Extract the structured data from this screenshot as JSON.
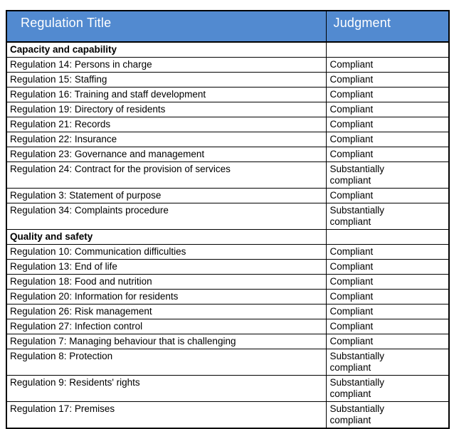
{
  "table": {
    "headers": [
      "Regulation Title",
      "Judgment"
    ],
    "sections": [
      {
        "title": "Capacity and capability",
        "rows": [
          {
            "title": "Regulation 14: Persons in charge",
            "judgment": "Compliant"
          },
          {
            "title": "Regulation 15: Staffing",
            "judgment": "Compliant"
          },
          {
            "title": "Regulation 16: Training and staff development",
            "judgment": "Compliant"
          },
          {
            "title": "Regulation 19: Directory of residents",
            "judgment": "Compliant"
          },
          {
            "title": "Regulation 21: Records",
            "judgment": "Compliant"
          },
          {
            "title": "Regulation 22: Insurance",
            "judgment": "Compliant"
          },
          {
            "title": "Regulation 23: Governance and management",
            "judgment": "Compliant"
          },
          {
            "title": "Regulation 24: Contract for the provision of services",
            "judgment": "Substantially compliant"
          },
          {
            "title": "Regulation 3: Statement of purpose",
            "judgment": "Compliant"
          },
          {
            "title": "Regulation 34: Complaints procedure",
            "judgment": "Substantially compliant"
          }
        ]
      },
      {
        "title": "Quality and safety",
        "rows": [
          {
            "title": "Regulation 10: Communication difficulties",
            "judgment": "Compliant"
          },
          {
            "title": "Regulation 13: End of life",
            "judgment": "Compliant"
          },
          {
            "title": "Regulation 18: Food and nutrition",
            "judgment": "Compliant"
          },
          {
            "title": "Regulation 20: Information for residents",
            "judgment": "Compliant"
          },
          {
            "title": "Regulation 26: Risk management",
            "judgment": "Compliant"
          },
          {
            "title": "Regulation 27: Infection control",
            "judgment": "Compliant"
          },
          {
            "title": "Regulation 7: Managing behaviour that is challenging",
            "judgment": "Compliant"
          },
          {
            "title": "Regulation 8: Protection",
            "judgment": "Substantially compliant"
          },
          {
            "title": "Regulation 9: Residents' rights",
            "judgment": "Substantially compliant"
          },
          {
            "title": "Regulation 17: Premises",
            "judgment": "Substantially compliant"
          }
        ]
      }
    ]
  },
  "colors": {
    "header_bg": "#528ad0",
    "header_text": "#ffffff",
    "border": "#000000"
  }
}
